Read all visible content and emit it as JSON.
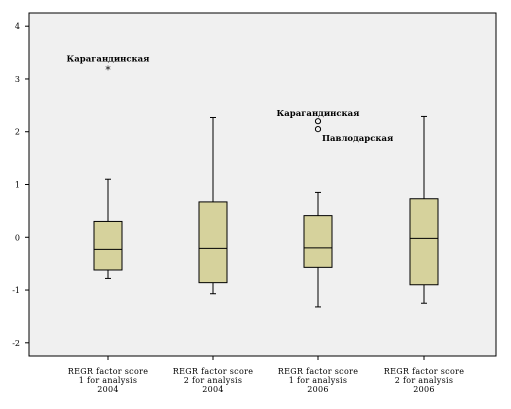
{
  "chart_data": {
    "type": "boxplot",
    "title": "",
    "xlabel": "",
    "ylabel": "",
    "ylim": [
      -2.25,
      4.25
    ],
    "yticks": [
      -2,
      -1,
      0,
      1,
      2,
      3,
      4
    ],
    "ytick_labels": [
      "-2",
      "-1",
      "0",
      "1",
      "2",
      "3",
      "4"
    ],
    "grid": false,
    "plot_background": "#f0f0f0",
    "box_fill": "#d6d29c",
    "categories": [
      [
        "REGR factor score",
        "1 for analysis",
        "2004"
      ],
      [
        "REGR factor score",
        "2 for analysis",
        "2004"
      ],
      [
        "REGR factor score",
        "1 for analysis",
        "2006"
      ],
      [
        "REGR factor score",
        "2 for analysis",
        "2006"
      ]
    ],
    "boxes": [
      {
        "whisker_low": -0.78,
        "q1": -0.62,
        "median": -0.23,
        "q3": 0.3,
        "whisker_high": 1.1
      },
      {
        "whisker_low": -1.07,
        "q1": -0.86,
        "median": -0.21,
        "q3": 0.67,
        "whisker_high": 2.27
      },
      {
        "whisker_low": -1.32,
        "q1": -0.57,
        "median": -0.2,
        "q3": 0.41,
        "whisker_high": 0.85
      },
      {
        "whisker_low": -1.25,
        "q1": -0.9,
        "median": -0.02,
        "q3": 0.73,
        "whisker_high": 2.29
      }
    ],
    "outliers": [
      {
        "box": 0,
        "value": 3.2,
        "marker": "star",
        "label": "Карагандинская"
      },
      {
        "box": 2,
        "value": 2.2,
        "marker": "circle",
        "label": "Карагандинская"
      },
      {
        "box": 2,
        "value": 2.05,
        "marker": "circle",
        "label": "Павлодарская"
      }
    ]
  }
}
